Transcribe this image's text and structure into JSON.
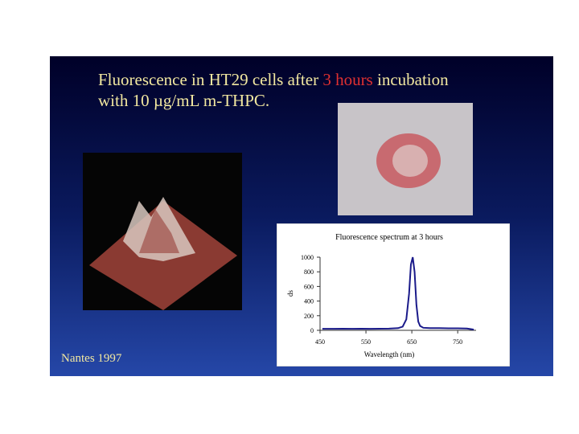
{
  "title": {
    "parts": [
      "Fluorescence in HT29 cells after ",
      "3 hours",
      " incubation"
    ],
    "line2": "with 10 µg/mL m-THPC."
  },
  "footer": "Nantes 1997",
  "chart_data": {
    "type": "line",
    "title": "Fluorescence spectrum at 3 hours",
    "x_label": "Wavelength (nm)",
    "y_label": "ds",
    "x": [
      455,
      480,
      500,
      520,
      540,
      560,
      580,
      600,
      620,
      630,
      638,
      644,
      648,
      652,
      656,
      660,
      664,
      668,
      675,
      690,
      710,
      730,
      750,
      770,
      780,
      785
    ],
    "series": [
      {
        "name": "Fluorescence",
        "color": "#1a1a8a",
        "values": [
          20,
          20,
          22,
          20,
          22,
          20,
          22,
          24,
          30,
          50,
          150,
          500,
          900,
          1000,
          800,
          350,
          120,
          60,
          35,
          30,
          30,
          28,
          28,
          25,
          15,
          10
        ]
      }
    ],
    "xlim": [
      450,
      790
    ],
    "ylim": [
      0,
      1000
    ],
    "xticks": [
      450,
      550,
      650,
      750
    ],
    "yticks": [
      0,
      200,
      400,
      600,
      800,
      1000
    ]
  }
}
